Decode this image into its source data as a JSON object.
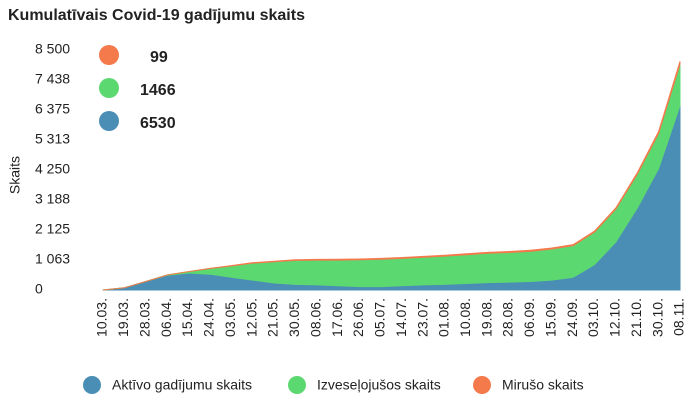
{
  "chart_data": {
    "type": "area",
    "stacked": true,
    "title": "Kumulatīvais Covid-19 gadījumu skaits",
    "y_label": "Skaits",
    "categories": [
      "10.03.",
      "19.03.",
      "28.03.",
      "06.04.",
      "15.04.",
      "24.04.",
      "03.05.",
      "12.05.",
      "21.05.",
      "30.05.",
      "08.06.",
      "17.06.",
      "26.06.",
      "05.07.",
      "14.07.",
      "23.07.",
      "01.08.",
      "10.08.",
      "19.08.",
      "28.08.",
      "06.09.",
      "15.09.",
      "24.09.",
      "03.10.",
      "12.10.",
      "21.10.",
      "30.10.",
      "08.11."
    ],
    "series": [
      {
        "name": "Aktīvo gadījumu skaits",
        "color": "#4a8db5",
        "values": [
          1,
          80,
          300,
          520,
          600,
          560,
          450,
          350,
          250,
          200,
          180,
          150,
          120,
          120,
          150,
          180,
          200,
          230,
          260,
          280,
          300,
          350,
          450,
          900,
          1700,
          2900,
          4300,
          6530
        ]
      },
      {
        "name": "Izveseļojušos skaits",
        "color": "#5cd870",
        "values": [
          0,
          0,
          1,
          10,
          50,
          200,
          400,
          600,
          750,
          850,
          880,
          910,
          950,
          970,
          970,
          980,
          1000,
          1020,
          1040,
          1050,
          1070,
          1100,
          1120,
          1150,
          1170,
          1200,
          1250,
          1466
        ]
      },
      {
        "name": "Mirušo skaits",
        "color": "#f47a4c",
        "values": [
          0,
          0,
          0,
          0,
          3,
          8,
          13,
          18,
          20,
          22,
          25,
          28,
          30,
          30,
          31,
          31,
          32,
          32,
          33,
          35,
          36,
          36,
          37,
          38,
          40,
          50,
          65,
          99
        ]
      }
    ],
    "ylim": [
      0,
      8500
    ],
    "yticks": [
      0,
      {
        "value": 1063,
        "label": "1 063"
      },
      {
        "value": 2125,
        "label": "2 125"
      },
      {
        "value": 3188,
        "label": "3 188"
      },
      {
        "value": 4250,
        "label": "4 250"
      },
      {
        "value": 5313,
        "label": "5 313"
      },
      {
        "value": 6375,
        "label": "6 375"
      },
      {
        "value": 7438,
        "label": "7 438"
      },
      {
        "value": 8500,
        "label": "8 500"
      }
    ],
    "grid": false
  }
}
